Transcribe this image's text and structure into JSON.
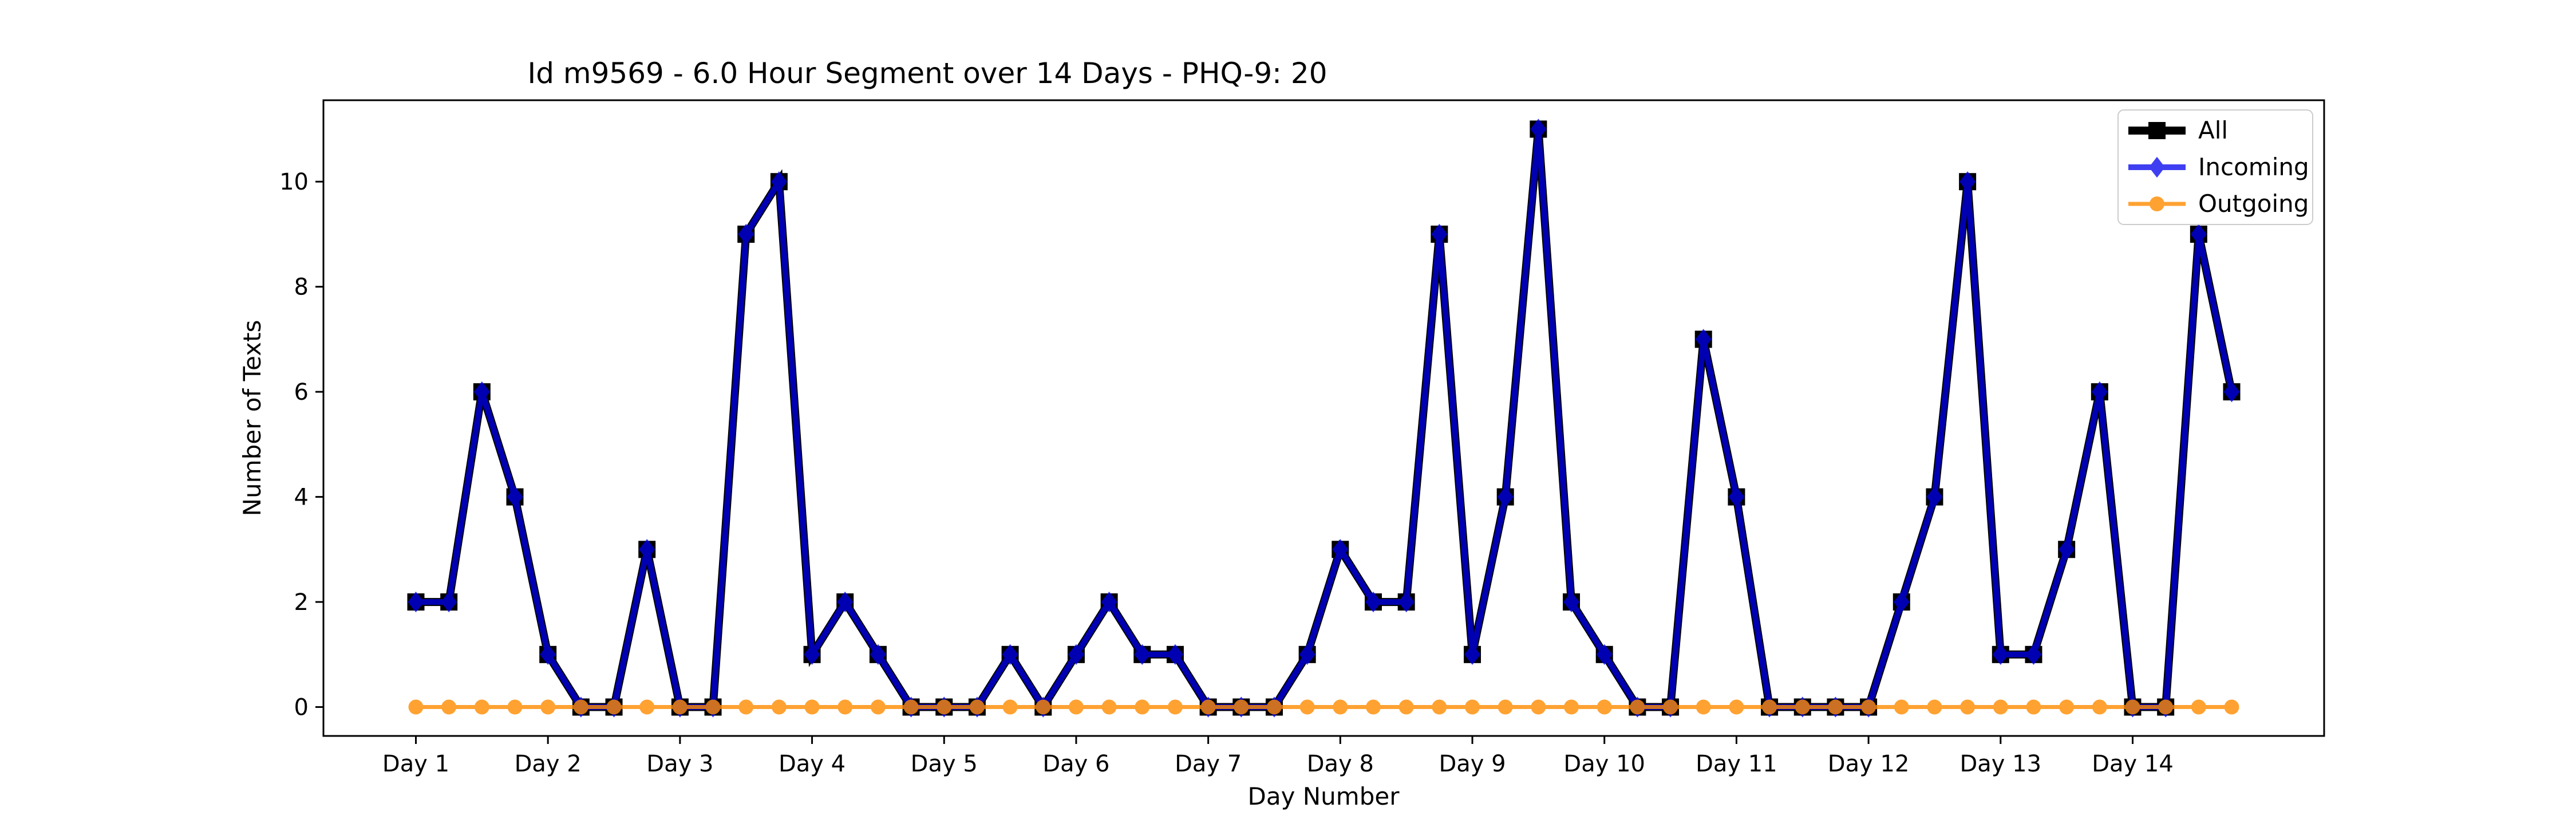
{
  "chart_data": {
    "type": "line",
    "title": "Id m9569 - 6.0 Hour Segment over 14 Days - PHQ-9: 20",
    "xlabel": "Day Number",
    "ylabel": "Number of Texts",
    "ylim": [
      -0.55,
      11.55
    ],
    "xlim": [
      -2.8,
      57.8
    ],
    "legend_position": "top-right",
    "grid": false,
    "categories": [
      "Day 1",
      "Day 2",
      "Day 3",
      "Day 4",
      "Day 5",
      "Day 6",
      "Day 7",
      "Day 8",
      "Day 9",
      "Day 10",
      "Day 11",
      "Day 12",
      "Day 13",
      "Day 14"
    ],
    "category_positions": [
      0,
      4,
      8,
      12,
      16,
      20,
      24,
      28,
      32,
      36,
      40,
      44,
      48,
      52
    ],
    "x": [
      0,
      1,
      2,
      3,
      4,
      5,
      6,
      7,
      8,
      9,
      10,
      11,
      12,
      13,
      14,
      15,
      16,
      17,
      18,
      19,
      20,
      21,
      22,
      23,
      24,
      25,
      26,
      27,
      28,
      29,
      30,
      31,
      32,
      33,
      34,
      35,
      36,
      37,
      38,
      39,
      40,
      41,
      42,
      43,
      44,
      45,
      46,
      47,
      48,
      49,
      50,
      51,
      52,
      53,
      54,
      55
    ],
    "y_ticks": [
      0,
      2,
      4,
      6,
      8,
      10
    ],
    "series": [
      {
        "name": "All",
        "color": "#000000",
        "marker": "square",
        "values": [
          2,
          2,
          6,
          4,
          1,
          0,
          0,
          3,
          0,
          0,
          9,
          10,
          1,
          2,
          1,
          0,
          0,
          0,
          1,
          0,
          1,
          2,
          1,
          1,
          0,
          0,
          0,
          1,
          3,
          2,
          2,
          9,
          1,
          4,
          11,
          2,
          1,
          0,
          0,
          7,
          4,
          0,
          0,
          0,
          0,
          2,
          4,
          10,
          1,
          1,
          3,
          6,
          0,
          0,
          9,
          6
        ]
      },
      {
        "name": "Incoming",
        "color": "#0000ee",
        "marker": "diamond",
        "values": [
          2,
          2,
          6,
          4,
          1,
          0,
          0,
          3,
          0,
          0,
          9,
          10,
          1,
          2,
          1,
          0,
          0,
          0,
          1,
          0,
          1,
          2,
          1,
          1,
          0,
          0,
          0,
          1,
          3,
          2,
          2,
          9,
          1,
          4,
          11,
          2,
          1,
          0,
          0,
          7,
          4,
          0,
          0,
          0,
          0,
          2,
          4,
          10,
          1,
          1,
          3,
          6,
          0,
          0,
          9,
          6
        ]
      },
      {
        "name": "Outgoing",
        "color": "#ff8c00",
        "marker": "circle",
        "values": [
          0,
          0,
          0,
          0,
          0,
          0,
          0,
          0,
          0,
          0,
          0,
          0,
          0,
          0,
          0,
          0,
          0,
          0,
          0,
          0,
          0,
          0,
          0,
          0,
          0,
          0,
          0,
          0,
          0,
          0,
          0,
          0,
          0,
          0,
          0,
          0,
          0,
          0,
          0,
          0,
          0,
          0,
          0,
          0,
          0,
          0,
          0,
          0,
          0,
          0,
          0,
          0,
          0,
          0,
          0,
          0
        ]
      }
    ]
  }
}
